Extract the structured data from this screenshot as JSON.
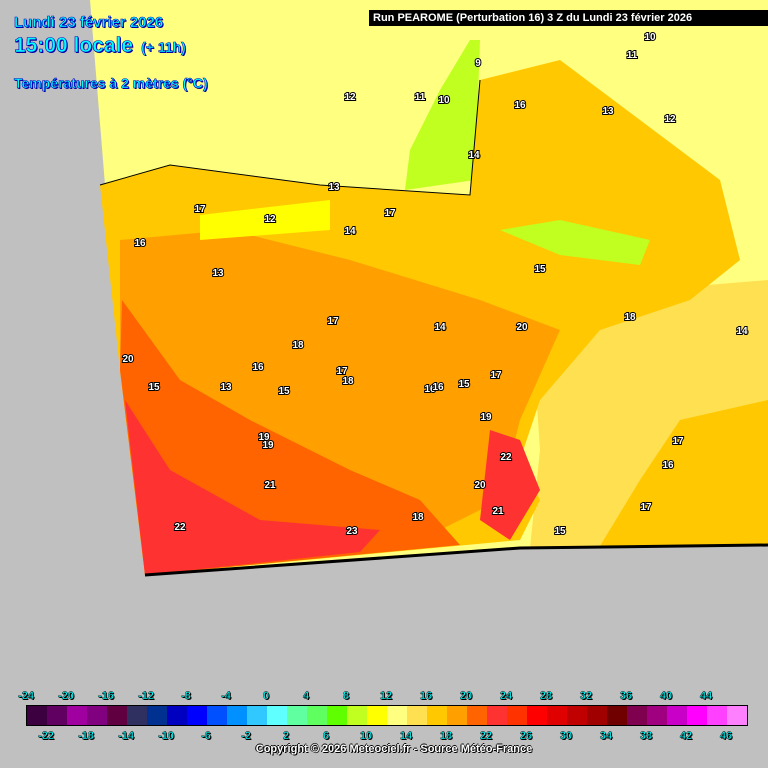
{
  "header": {
    "date": "Lundi 23 février 2026",
    "time": "15:00 locale",
    "lead": "(+ 11h)",
    "parameter": "Températures à 2 mètres (°C)",
    "run": "Run PEAROME (Perturbation 16) 3 Z du Lundi 23 février 2026"
  },
  "map": {
    "background_color": "#c0c0c0",
    "contour_labels": [
      "12",
      "11",
      "10",
      "9",
      "14",
      "16",
      "13",
      "12",
      "11",
      "10",
      "17",
      "12",
      "13",
      "17",
      "16",
      "14",
      "13",
      "15",
      "17",
      "14",
      "16",
      "15",
      "18",
      "20",
      "17",
      "18",
      "16",
      "15",
      "20",
      "18",
      "19",
      "17",
      "13",
      "16",
      "15",
      "19",
      "22",
      "21",
      "20",
      "18",
      "23",
      "22",
      "21",
      "14",
      "17",
      "16",
      "17",
      "15",
      "19"
    ]
  },
  "legend": {
    "top_labels": [
      "-24",
      "-20",
      "-16",
      "-12",
      "-8",
      "-4",
      "0",
      "4",
      "8",
      "12",
      "16",
      "20",
      "24",
      "28",
      "32",
      "36",
      "40",
      "44"
    ],
    "bottom_labels": [
      "-22",
      "-18",
      "-14",
      "-10",
      "-6",
      "-2",
      "2",
      "6",
      "10",
      "14",
      "18",
      "22",
      "26",
      "30",
      "34",
      "38",
      "42",
      "46"
    ],
    "colors": [
      "#3c0040",
      "#600060",
      "#a000a0",
      "#800080",
      "#600040",
      "#303060",
      "#003090",
      "#0000c0",
      "#0000ff",
      "#0050ff",
      "#0090ff",
      "#30c8ff",
      "#60ffff",
      "#60ffa0",
      "#60ff60",
      "#60ff00",
      "#c0ff20",
      "#ffff00",
      "#ffff80",
      "#ffe050",
      "#ffc800",
      "#ffa000",
      "#ff6400",
      "#ff3232",
      "#ff3200",
      "#ff0000",
      "#e00000",
      "#c00000",
      "#a00000",
      "#700000",
      "#800050",
      "#a00080",
      "#c800c8",
      "#ff00ff",
      "#ff40ff",
      "#ff80ff"
    ]
  },
  "footer": {
    "copyright": "Copyright © 2026 Meteociel.fr - Source Météo-France"
  }
}
